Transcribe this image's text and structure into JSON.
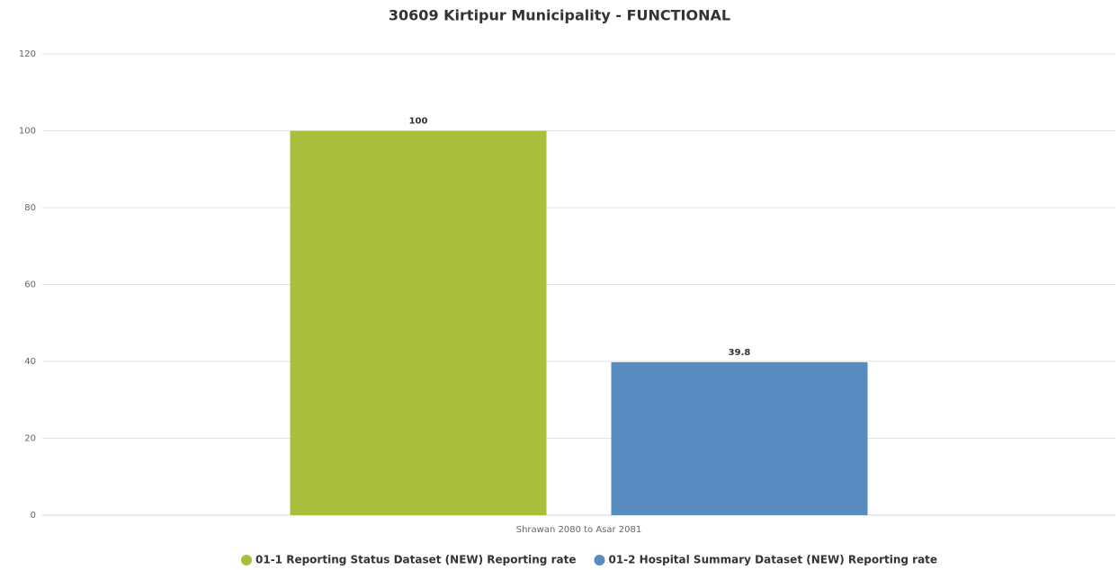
{
  "chart_data": {
    "type": "bar",
    "title": "30609 Kirtipur Municipality - FUNCTIONAL",
    "categories": [
      "Shrawan 2080 to Asar 2081"
    ],
    "series": [
      {
        "name": "01-1 Reporting Status Dataset (NEW) Reporting rate",
        "color": "#a9bf3c",
        "values": [
          100
        ]
      },
      {
        "name": "01-2 Hospital Summary Dataset (NEW) Reporting rate",
        "color": "#588bbf",
        "values": [
          39.8
        ]
      }
    ],
    "ylim": [
      0,
      120
    ],
    "yticks": [
      0,
      20,
      40,
      60,
      80,
      100,
      120
    ],
    "grid": true,
    "legend": "bottom"
  }
}
